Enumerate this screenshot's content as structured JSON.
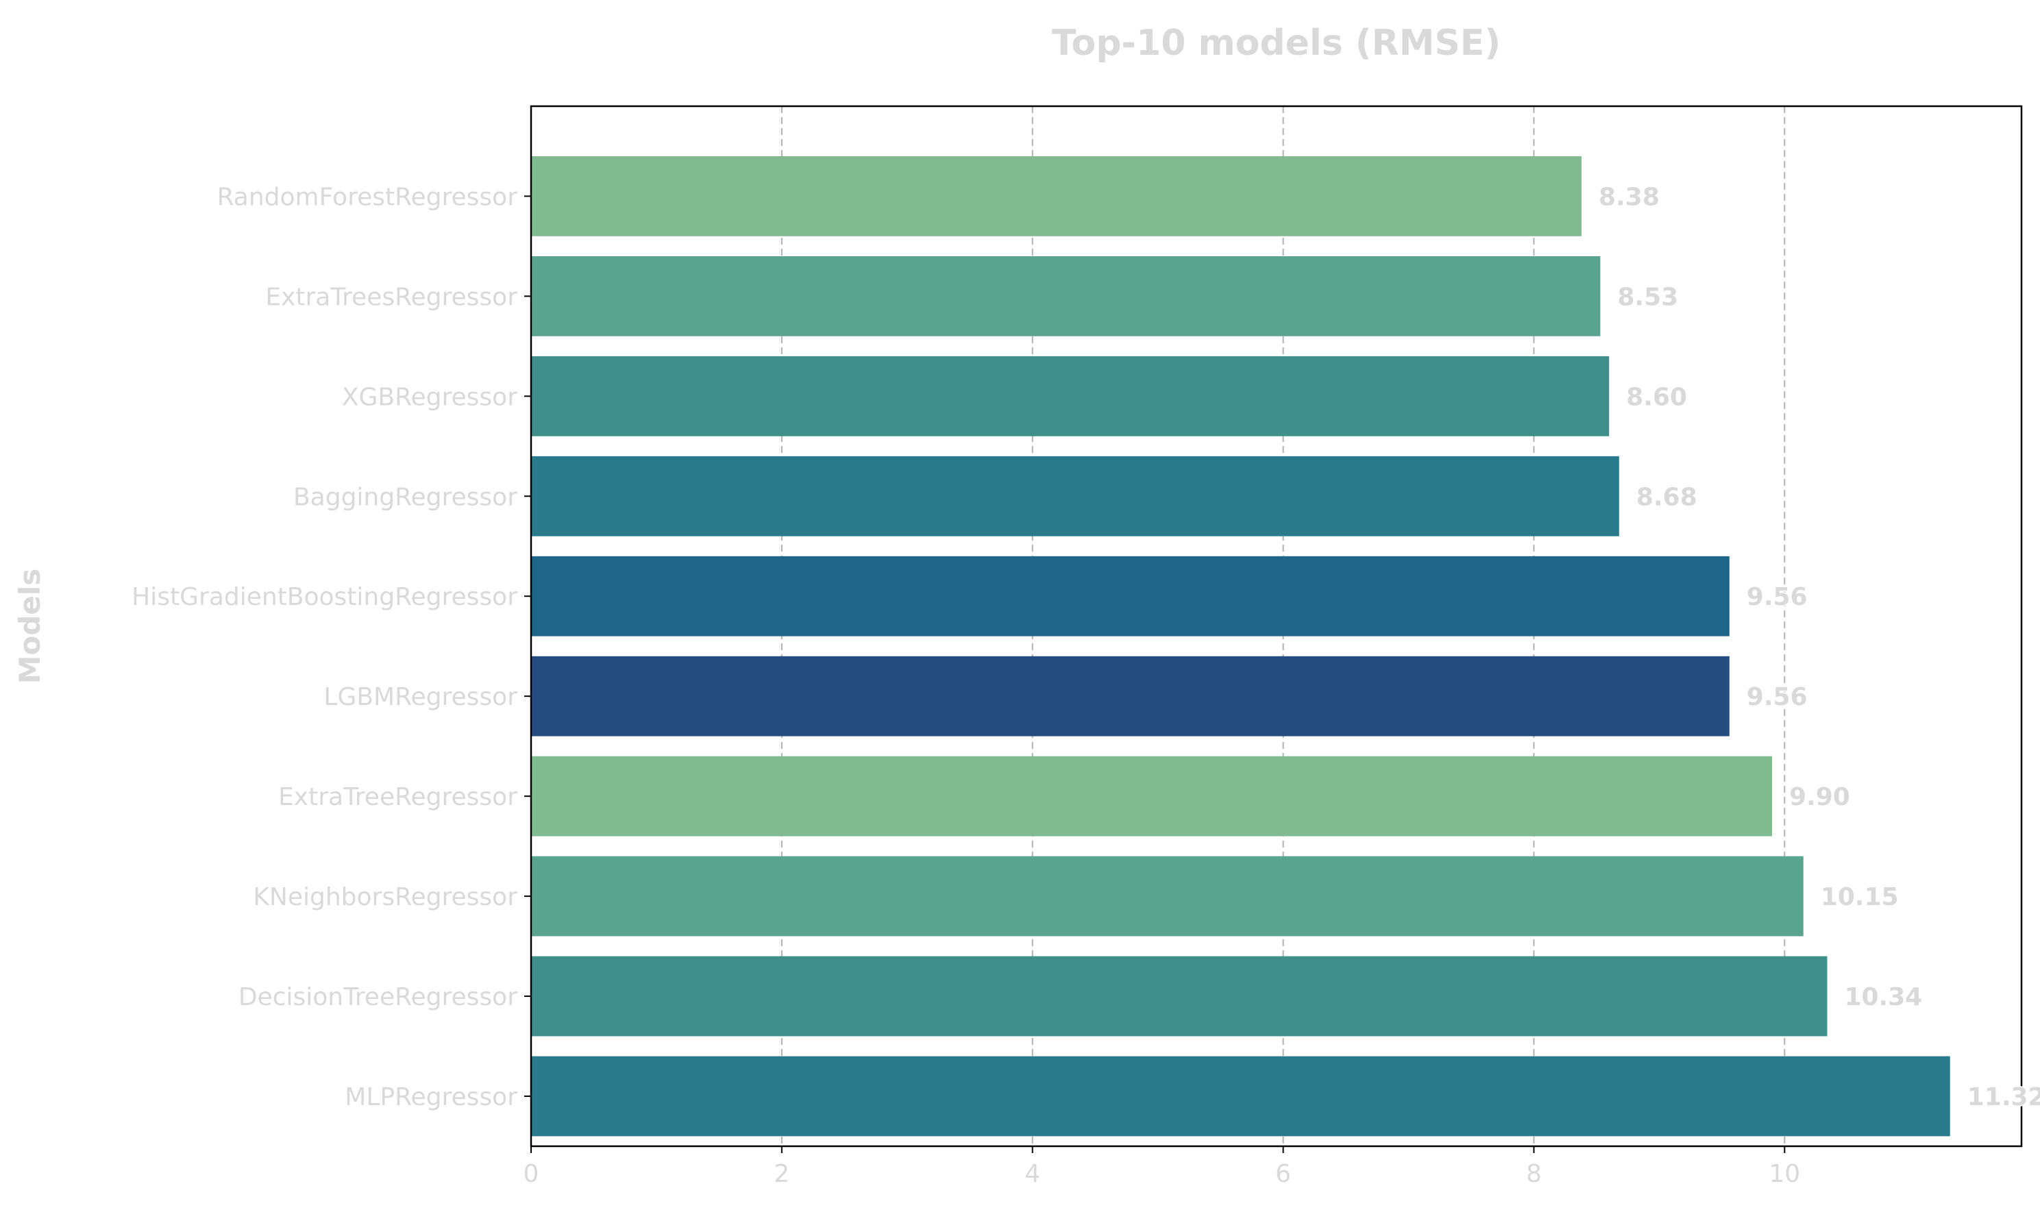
{
  "chart_data": {
    "type": "bar",
    "orientation": "horizontal",
    "title": "Top-10 models (RMSE)",
    "xlabel": "",
    "ylabel": "Models",
    "categories": [
      "RandomForestRegressor",
      "ExtraTreesRegressor",
      "XGBRegressor",
      "BaggingRegressor",
      "HistGradientBoostingRegressor",
      "LGBMRegressor",
      "ExtraTreeRegressor",
      "KNeighborsRegressor",
      "DecisionTreeRegressor",
      "MLPRegressor"
    ],
    "values": [
      8.38,
      8.53,
      8.6,
      8.68,
      9.56,
      9.56,
      9.9,
      10.15,
      10.34,
      11.32
    ],
    "value_labels": [
      "8.38",
      "8.53",
      "8.60",
      "8.68",
      "9.56",
      "9.56",
      "9.90",
      "10.15",
      "10.34",
      "11.32"
    ],
    "bar_colors": [
      "#7fba90",
      "#5aa38e",
      "#418f8b",
      "#2a7a8c",
      "#1f6588",
      "#264c7f",
      "#7fba90",
      "#5aa38e",
      "#418f8b",
      "#2a7a8c"
    ],
    "xticks": [
      0,
      2,
      4,
      6,
      8,
      10
    ],
    "xtick_labels": [
      "0",
      "2",
      "4",
      "6",
      "8",
      "10"
    ],
    "xlim": [
      0,
      11.89
    ],
    "grid": "x-dashed",
    "legend": "none"
  }
}
